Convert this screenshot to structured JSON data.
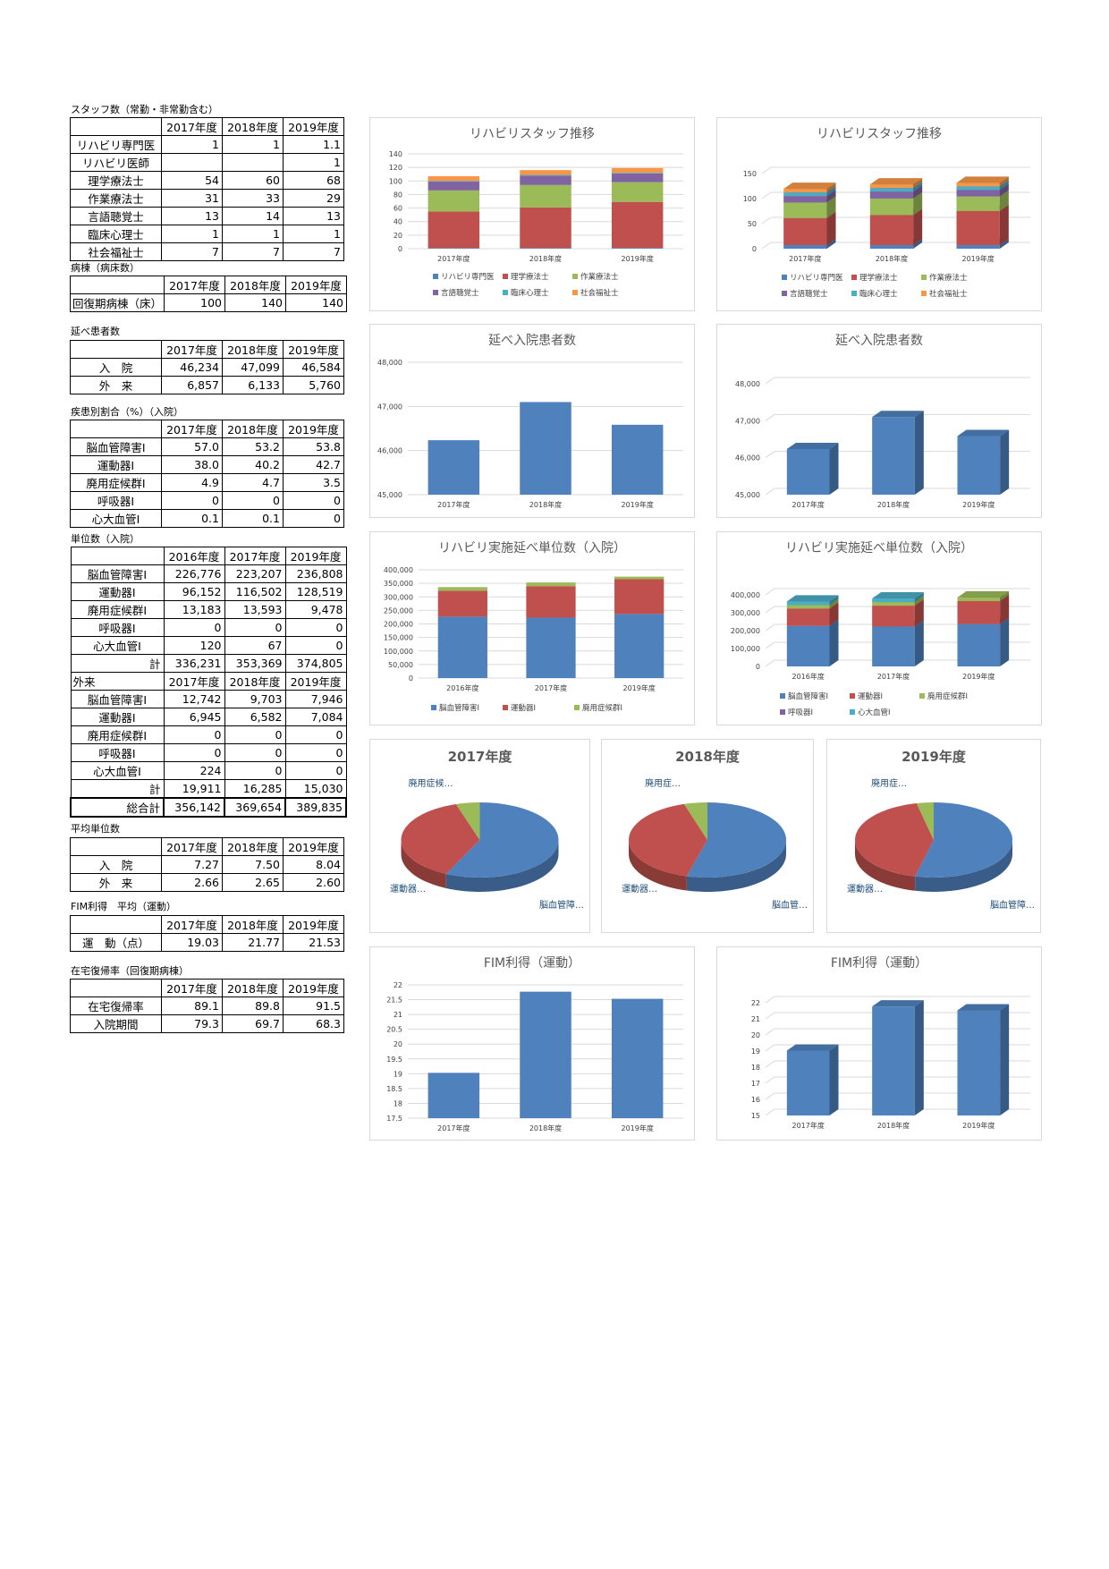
{
  "tables": {
    "staff": {
      "title": "スタッフ数（常勤・非常勤含む）",
      "headers": [
        "2017年度",
        "2018年度",
        "2019年度"
      ],
      "rows": [
        {
          "label": "リハビリ専門医",
          "values": [
            "1",
            "1",
            "1.1"
          ]
        },
        {
          "label": "リハビリ医師",
          "values": [
            "",
            "",
            "1"
          ]
        },
        {
          "label": "理学療法士",
          "values": [
            "54",
            "60",
            "68"
          ]
        },
        {
          "label": "作業療法士",
          "values": [
            "31",
            "33",
            "29"
          ]
        },
        {
          "label": "言語聴覚士",
          "values": [
            "13",
            "14",
            "13"
          ]
        },
        {
          "label": "臨床心理士",
          "values": [
            "1",
            "1",
            "1"
          ]
        },
        {
          "label": "社会福祉士",
          "values": [
            "7",
            "7",
            "7"
          ]
        }
      ]
    },
    "beds": {
      "title": "病棟（病床数）",
      "headers": [
        "2017年度",
        "2018年度",
        "2019年度"
      ],
      "rows": [
        {
          "label": "回復期病棟（床）",
          "values": [
            "100",
            "140",
            "140"
          ]
        }
      ]
    },
    "patients": {
      "title": "延べ患者数",
      "headers": [
        "2017年度",
        "2018年度",
        "2019年度"
      ],
      "rows": [
        {
          "label": "入　院",
          "values": [
            "46,234",
            "47,099",
            "46,584"
          ]
        },
        {
          "label": "外　来",
          "values": [
            "6,857",
            "6,133",
            "5,760"
          ]
        }
      ]
    },
    "disease": {
      "title": "疾患別割合（%）（入院）",
      "headers": [
        "2017年度",
        "2018年度",
        "2019年度"
      ],
      "rows": [
        {
          "label": "脳血管障害Ⅰ",
          "values": [
            "57.0",
            "53.2",
            "53.8"
          ]
        },
        {
          "label": "運動器Ⅰ",
          "values": [
            "38.0",
            "40.2",
            "42.7"
          ]
        },
        {
          "label": "廃用症候群Ⅰ",
          "values": [
            "4.9",
            "4.7",
            "3.5"
          ]
        },
        {
          "label": "呼吸器Ⅰ",
          "values": [
            "0",
            "0",
            "0"
          ]
        },
        {
          "label": "心大血管Ⅰ",
          "values": [
            "0.1",
            "0.1",
            "0"
          ]
        }
      ]
    },
    "units": {
      "title": "単位数（入院）",
      "headers": [
        "2016年度",
        "2017年度",
        "2019年度"
      ],
      "rows": [
        {
          "label": "脳血管障害Ⅰ",
          "values": [
            "226,776",
            "223,207",
            "236,808"
          ]
        },
        {
          "label": "運動器Ⅰ",
          "values": [
            "96,152",
            "116,502",
            "128,519"
          ]
        },
        {
          "label": "廃用症候群Ⅰ",
          "values": [
            "13,183",
            "13,593",
            "9,478"
          ]
        },
        {
          "label": "呼吸器Ⅰ",
          "values": [
            "0",
            "0",
            "0"
          ]
        },
        {
          "label": "心大血管Ⅰ",
          "values": [
            "120",
            "67",
            "0"
          ]
        }
      ],
      "total": {
        "label": "計",
        "values": [
          "336,231",
          "353,369",
          "374,805"
        ]
      },
      "outpatient_label": "外来",
      "out_headers": [
        "2017年度",
        "2018年度",
        "2019年度"
      ],
      "out_rows": [
        {
          "label": "脳血管障害Ⅰ",
          "values": [
            "12,742",
            "9,703",
            "7,946"
          ]
        },
        {
          "label": "運動器Ⅰ",
          "values": [
            "6,945",
            "6,582",
            "7,084"
          ]
        },
        {
          "label": "廃用症候群Ⅰ",
          "values": [
            "0",
            "0",
            "0"
          ]
        },
        {
          "label": "呼吸器Ⅰ",
          "values": [
            "0",
            "0",
            "0"
          ]
        },
        {
          "label": "心大血管Ⅰ",
          "values": [
            "224",
            "0",
            "0"
          ]
        }
      ],
      "out_total": {
        "label": "計",
        "values": [
          "19,911",
          "16,285",
          "15,030"
        ]
      },
      "grand_total": {
        "label": "総合計",
        "values": [
          "356,142",
          "369,654",
          "389,835"
        ]
      }
    },
    "avg_units": {
      "title": "平均単位数",
      "headers": [
        "2017年度",
        "2018年度",
        "2019年度"
      ],
      "rows": [
        {
          "label": "入　院",
          "values": [
            "7.27",
            "7.50",
            "8.04"
          ]
        },
        {
          "label": "外　来",
          "values": [
            "2.66",
            "2.65",
            "2.60"
          ]
        }
      ]
    },
    "fim": {
      "title": "FIM利得　平均（運動）",
      "headers": [
        "2017年度",
        "2018年度",
        "2019年度"
      ],
      "rows": [
        {
          "label": "運　動（点）",
          "values": [
            "19.03",
            "21.77",
            "21.53"
          ]
        }
      ]
    },
    "home": {
      "title": "在宅復帰率（回復期病棟）",
      "headers": [
        "2017年度",
        "2018年度",
        "2019年度"
      ],
      "rows": [
        {
          "label": "在宅復帰率",
          "values": [
            "89.1",
            "89.8",
            "91.5"
          ]
        },
        {
          "label": "入院期間",
          "values": [
            "79.3",
            "69.7",
            "68.3"
          ]
        }
      ]
    }
  },
  "colors": {
    "blue": "#4f81bd",
    "red": "#c0504d",
    "green": "#9bbb59",
    "purple": "#8064a2",
    "teal": "#4bacc6",
    "orange": "#f79646"
  },
  "chart_data": [
    {
      "id": "staff2d",
      "type": "bar",
      "stacked": true,
      "title": "リハビリスタッフ推移",
      "categories": [
        "2017年度",
        "2018年度",
        "2019年度"
      ],
      "series": [
        {
          "name": "リハビリ専門医",
          "values": [
            1,
            1,
            1.1
          ]
        },
        {
          "name": "理学療法士",
          "values": [
            54,
            60,
            68
          ]
        },
        {
          "name": "作業療法士",
          "values": [
            31,
            33,
            29
          ]
        },
        {
          "name": "言語聴覚士",
          "values": [
            13,
            14,
            13
          ]
        },
        {
          "name": "臨床心理士",
          "values": [
            1,
            1,
            1
          ]
        },
        {
          "name": "社会福祉士",
          "values": [
            7,
            7,
            7
          ]
        }
      ],
      "ylim": [
        0,
        140
      ],
      "yticks": [
        "0",
        "20",
        "40",
        "60",
        "80",
        "100",
        "120",
        "140"
      ],
      "legend": "bottom"
    },
    {
      "id": "staff3d",
      "type": "bar",
      "stacked": true,
      "title": "リハビリスタッフ推移",
      "categories": [
        "2017年度",
        "2018年度",
        "2019年度"
      ],
      "series": [
        {
          "name": "リハビリ専門医",
          "values": [
            1,
            1,
            1.1
          ]
        },
        {
          "name": "理学療法士",
          "values": [
            54,
            60,
            68
          ]
        },
        {
          "name": "作業療法士",
          "values": [
            31,
            33,
            29
          ]
        },
        {
          "name": "言語聴覚士",
          "values": [
            13,
            14,
            13
          ]
        },
        {
          "name": "臨床心理士",
          "values": [
            1,
            1,
            1
          ]
        },
        {
          "name": "社会福祉士",
          "values": [
            7,
            7,
            7
          ]
        }
      ],
      "ylim": [
        0,
        150
      ],
      "yticks": [
        "0",
        "50",
        "100",
        "150"
      ],
      "legend": "bottom"
    },
    {
      "id": "pat2d",
      "type": "bar",
      "title": "延べ入院患者数",
      "categories": [
        "2017年度",
        "2018年度",
        "2019年度"
      ],
      "values": [
        46234,
        47099,
        46584
      ],
      "ylim": [
        45000,
        48000
      ],
      "yticks": [
        "45,000",
        "46,000",
        "47,000",
        "48,000"
      ]
    },
    {
      "id": "pat3d",
      "type": "bar",
      "title": "延べ入院患者数",
      "categories": [
        "2017年度",
        "2018年度",
        "2019年度"
      ],
      "values": [
        46234,
        47099,
        46584
      ],
      "ylim": [
        45000,
        48000
      ],
      "yticks": [
        "45,000",
        "46,000",
        "47,000",
        "48,000"
      ]
    },
    {
      "id": "unit2d",
      "type": "bar",
      "stacked": true,
      "title": "リハビリ実施延べ単位数（入院）",
      "categories": [
        "2016年度",
        "2017年度",
        "2019年度"
      ],
      "series": [
        {
          "name": "脳血管障害Ⅰ",
          "values": [
            226776,
            223207,
            236808
          ]
        },
        {
          "name": "運動器Ⅰ",
          "values": [
            96152,
            116502,
            128519
          ]
        },
        {
          "name": "廃用症候群Ⅰ",
          "values": [
            13183,
            13593,
            9478
          ]
        }
      ],
      "legend_names": [
        "脳血管障害Ⅰ",
        "運動器Ⅰ",
        "廃用症候群Ⅰ"
      ],
      "ylim": [
        0,
        400000
      ],
      "yticks": [
        "0",
        "50,000",
        "100,000",
        "150,000",
        "200,000",
        "250,000",
        "300,000",
        "350,000",
        "400,000"
      ],
      "legend": "bottom"
    },
    {
      "id": "unit3d",
      "type": "bar",
      "stacked": true,
      "title": "リハビリ実施延べ単位数（入院）",
      "categories": [
        "2016年度",
        "2017年度",
        "2019年度"
      ],
      "series": [
        {
          "name": "脳血管障害Ⅰ",
          "values": [
            226776,
            223207,
            236808
          ]
        },
        {
          "name": "運動器Ⅰ",
          "values": [
            96152,
            116502,
            128519
          ]
        },
        {
          "name": "廃用症候群Ⅰ",
          "values": [
            13183,
            13593,
            9478
          ]
        },
        {
          "name": "呼吸器Ⅰ",
          "values": [
            0,
            0,
            0
          ]
        },
        {
          "name": "心大血管Ⅰ",
          "values": [
            120,
            67,
            0
          ]
        }
      ],
      "ylim": [
        0,
        400000
      ],
      "yticks": [
        "0",
        "100,000",
        "200,000",
        "300,000",
        "400,000"
      ],
      "legend": "bottom"
    },
    {
      "id": "pie2017",
      "type": "pie",
      "title": "2017年度",
      "slices": [
        {
          "name": "脳血管障害Ⅰ",
          "value": 57.0
        },
        {
          "name": "運動器Ⅰ",
          "value": 38.0
        },
        {
          "name": "廃用症候群Ⅰ",
          "value": 4.9
        }
      ],
      "labels": {
        "top": "廃用症候…",
        "left": "運動器…",
        "right": "脳血管障…"
      }
    },
    {
      "id": "pie2018",
      "type": "pie",
      "title": "2018年度",
      "slices": [
        {
          "name": "脳血管障害Ⅰ",
          "value": 53.2
        },
        {
          "name": "運動器Ⅰ",
          "value": 40.2
        },
        {
          "name": "廃用症候群Ⅰ",
          "value": 4.7
        }
      ],
      "labels": {
        "top": "廃用症…",
        "left": "運動器…",
        "right": "脳血管…"
      }
    },
    {
      "id": "pie2019",
      "type": "pie",
      "title": "2019年度",
      "slices": [
        {
          "name": "脳血管障害Ⅰ",
          "value": 53.8
        },
        {
          "name": "運動器Ⅰ",
          "value": 42.7
        },
        {
          "name": "廃用症候群Ⅰ",
          "value": 3.5
        }
      ],
      "labels": {
        "top": "廃用症…",
        "left": "運動器…",
        "right": "脳血管障…"
      }
    },
    {
      "id": "fim2d",
      "type": "bar",
      "title": "FIM利得（運動）",
      "categories": [
        "2017年度",
        "2018年度",
        "2019年度"
      ],
      "values": [
        19.03,
        21.77,
        21.53
      ],
      "ylim": [
        17.5,
        22
      ],
      "yticks": [
        "17.5",
        "18",
        "18.5",
        "19",
        "19.5",
        "20",
        "20.5",
        "21",
        "21.5",
        "22"
      ]
    },
    {
      "id": "fim3d",
      "type": "bar",
      "title": "FIM利得（運動）",
      "categories": [
        "2017年度",
        "2018年度",
        "2019年度"
      ],
      "values": [
        19.03,
        21.77,
        21.53
      ],
      "ylim": [
        15,
        22
      ],
      "yticks": [
        "15",
        "16",
        "17",
        "18",
        "19",
        "20",
        "21",
        "22"
      ]
    }
  ]
}
